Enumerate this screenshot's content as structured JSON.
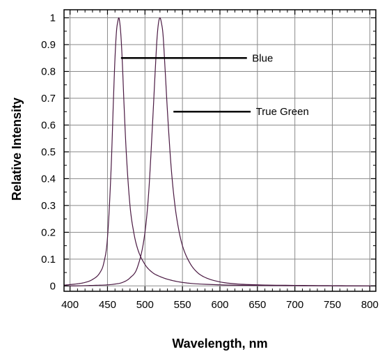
{
  "chart_data": {
    "type": "line",
    "title": "",
    "xlabel": "Wavelength, nm",
    "ylabel": "Relative Intensity",
    "xlim": [
      392,
      808
    ],
    "ylim": [
      -0.02,
      1.03
    ],
    "x_ticks": [
      400,
      450,
      500,
      550,
      600,
      650,
      700,
      750,
      800
    ],
    "x_tick_labels": [
      "400",
      "450",
      "500",
      "550",
      "600",
      "650",
      "700",
      "750",
      "800"
    ],
    "y_ticks": [
      0,
      0.1,
      0.2,
      0.3,
      0.4,
      0.5,
      0.6,
      0.7,
      0.8,
      0.9,
      1
    ],
    "y_tick_labels": [
      "0",
      "0.1",
      "0.2",
      "0.3",
      "0.4",
      "0.5",
      "0.6",
      "0.7",
      "0.8",
      "0.9",
      "1"
    ],
    "grid": true,
    "line_color": "#4a1942",
    "series": [
      {
        "name": "Blue",
        "x": [
          392,
          400,
          410,
          420,
          430,
          440,
          445,
          450,
          455,
          458,
          460,
          462,
          464,
          465,
          466,
          468,
          470,
          472,
          475,
          480,
          485,
          490,
          500,
          510,
          520,
          530,
          550,
          600,
          650,
          700,
          800,
          808
        ],
        "y": [
          0.003,
          0.005,
          0.008,
          0.013,
          0.024,
          0.05,
          0.085,
          0.18,
          0.45,
          0.7,
          0.85,
          0.95,
          0.99,
          1.0,
          0.99,
          0.93,
          0.82,
          0.68,
          0.5,
          0.3,
          0.2,
          0.14,
          0.08,
          0.05,
          0.035,
          0.025,
          0.013,
          0.004,
          0.002,
          0.001,
          0.0,
          0.0
        ]
      },
      {
        "name": "True Green",
        "x": [
          392,
          400,
          430,
          450,
          460,
          470,
          480,
          490,
          500,
          505,
          510,
          514,
          516,
          518,
          520,
          522,
          524,
          527,
          530,
          535,
          540,
          545,
          550,
          560,
          570,
          580,
          600,
          620,
          650,
          700,
          750,
          800,
          808
        ],
        "y": [
          0.0,
          0.0,
          0.002,
          0.004,
          0.007,
          0.013,
          0.03,
          0.07,
          0.2,
          0.35,
          0.6,
          0.82,
          0.92,
          0.98,
          1.0,
          0.98,
          0.94,
          0.8,
          0.65,
          0.44,
          0.3,
          0.21,
          0.15,
          0.085,
          0.05,
          0.032,
          0.015,
          0.008,
          0.004,
          0.002,
          0.001,
          0.0,
          0.0
        ]
      }
    ],
    "annotations": [
      {
        "text": "Blue",
        "line_x": [
          468,
          636
        ],
        "y": 0.85,
        "text_x": 643
      },
      {
        "text": "True Green",
        "line_x": [
          538,
          641
        ],
        "y": 0.65,
        "text_x": 648
      }
    ]
  }
}
